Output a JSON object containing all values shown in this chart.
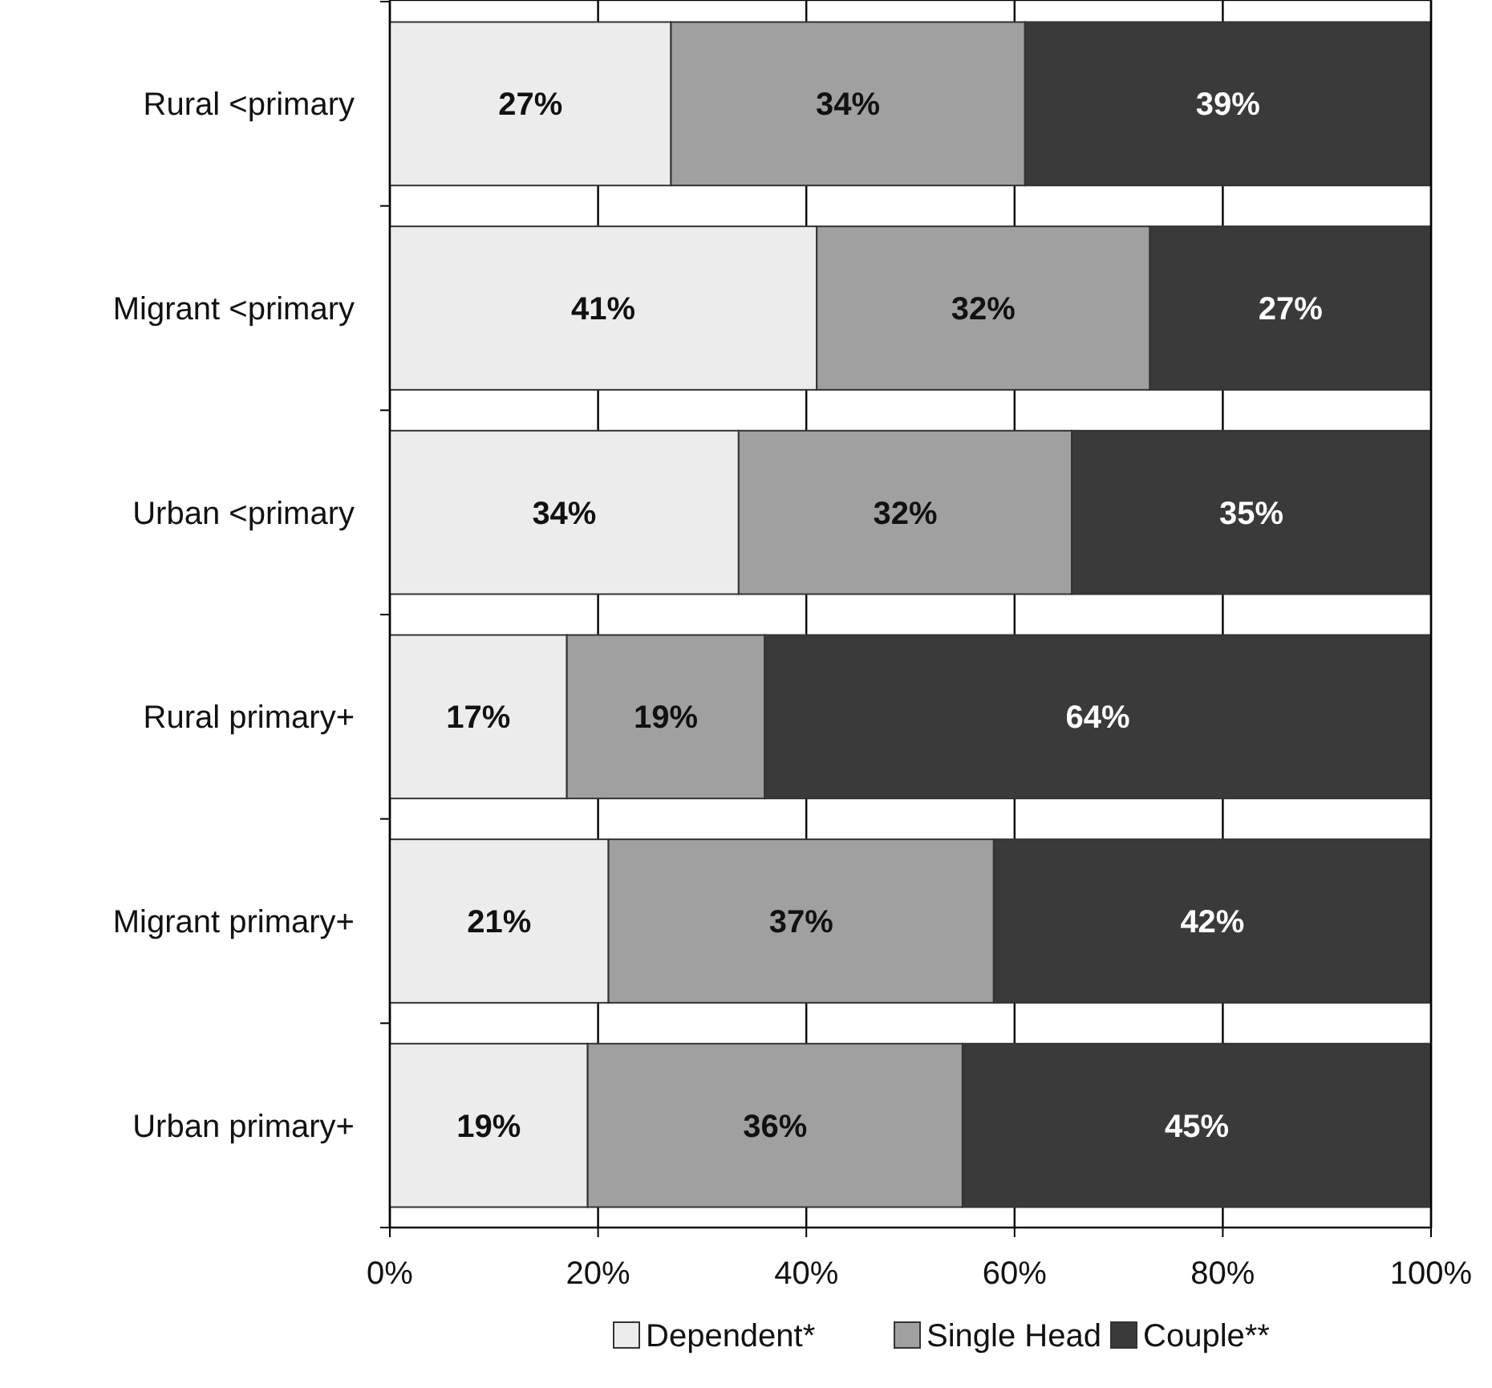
{
  "chart_data": {
    "type": "bar",
    "orientation": "horizontal",
    "stacked": true,
    "categories": [
      "Rural <primary",
      "Migrant <primary",
      "Urban <primary",
      "Rural primary+",
      "Migrant primary+",
      "Urban primary+"
    ],
    "series": [
      {
        "name": "Dependent*",
        "color": "#ececec",
        "values": [
          27,
          41,
          33.5,
          17,
          21,
          19
        ],
        "value_labels": [
          "27%",
          "41%",
          "34%",
          "17%",
          "21%",
          "19%"
        ]
      },
      {
        "name": "Single Head",
        "color": "#a0a0a0",
        "values": [
          34,
          32,
          32,
          19,
          37,
          36
        ],
        "value_labels": [
          "34%",
          "32%",
          "32%",
          "19%",
          "37%",
          "36%"
        ]
      },
      {
        "name": "Couple**",
        "color": "#3a3a3a",
        "values": [
          39,
          27,
          34.5,
          64,
          42,
          45
        ],
        "value_labels": [
          "39%",
          "27%",
          "35%",
          "64%",
          "42%",
          "45%"
        ]
      }
    ],
    "xlim": [
      0,
      100
    ],
    "xticks": [
      {
        "value": 0,
        "label": "0%"
      },
      {
        "value": 20,
        "label": "20%"
      },
      {
        "value": 40,
        "label": "40%"
      },
      {
        "value": 60,
        "label": "60%"
      },
      {
        "value": 80,
        "label": "80%"
      },
      {
        "value": 100,
        "label": "100%"
      }
    ],
    "grid": "x",
    "legend": "bottom"
  }
}
